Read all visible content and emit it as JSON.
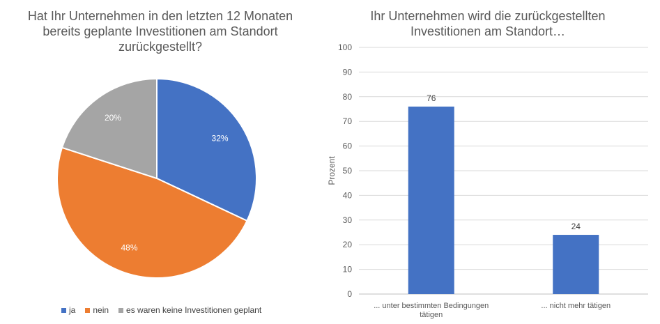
{
  "chart_data": [
    {
      "type": "pie",
      "title": "Hat Ihr Unternehmen in den letzten 12 Monaten bereits geplante Investitionen am Standort zurückgestellt?",
      "slices": [
        {
          "label": "ja",
          "value": 32,
          "data_label": "32%",
          "color": "#4472C4"
        },
        {
          "label": "nein",
          "value": 48,
          "data_label": "48%",
          "color": "#ED7D31"
        },
        {
          "label": "es waren keine Investitionen geplant",
          "value": 20,
          "data_label": "20%",
          "color": "#A5A5A5"
        }
      ],
      "legend_position": "bottom"
    },
    {
      "type": "bar",
      "title": "Ihr Unternehmen wird die zurückgestellten Investitionen am Standort…",
      "categories": [
        "... unter bestimmten Bedingungen tätigen",
        "... nicht mehr tätigen"
      ],
      "category_lines": [
        [
          "... unter bestimmten Bedingungen",
          "tätigen"
        ],
        [
          "... nicht mehr tätigen"
        ]
      ],
      "values": [
        76,
        24
      ],
      "value_labels": [
        "76",
        "24"
      ],
      "ylabel": "Prozent",
      "ylim": [
        0,
        100
      ],
      "yticks": [
        "0",
        "10",
        "20",
        "30",
        "40",
        "50",
        "60",
        "70",
        "80",
        "90",
        "100"
      ],
      "grid": true,
      "color": "#4472C4"
    }
  ]
}
